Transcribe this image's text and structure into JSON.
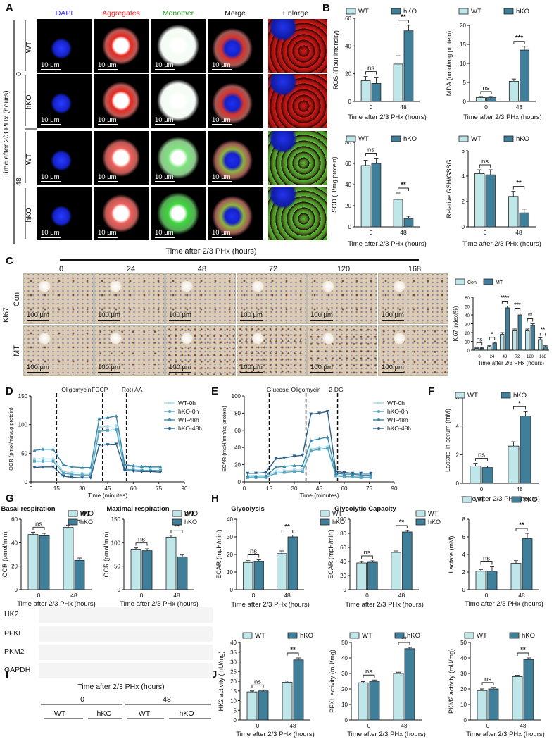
{
  "panel_letters": [
    "A",
    "B",
    "C",
    "D",
    "E",
    "F",
    "G",
    "H",
    "I",
    "J"
  ],
  "panelA": {
    "columns": [
      "DAPI",
      "Aggregates",
      "Monomer",
      "Merge",
      "Enlarge"
    ],
    "column_colors": [
      "#2a2aff",
      "#ff2020",
      "#20a020",
      "#111111",
      "#111111"
    ],
    "y_label": "Time after 2/3 PHx (hours)",
    "time_labels": [
      "0",
      "48"
    ],
    "row_labels": [
      "WT",
      "hKO",
      "WT",
      "hKO"
    ],
    "scale": "10 μm"
  },
  "panelC": {
    "times": [
      "0",
      "24",
      "48",
      "72",
      "120",
      "168"
    ],
    "row_group": "Ki67",
    "rows": [
      "Con",
      "MT"
    ],
    "scale": "100 μm"
  },
  "panelI": {
    "title": "Time after 2/3 PHx (hours)",
    "times": [
      "0",
      "48"
    ],
    "groups": [
      "WT",
      "hKO",
      "WT",
      "hKO"
    ],
    "bands": [
      "HK2",
      "PFKL",
      "PKM2",
      "GAPDH"
    ]
  },
  "colors": {
    "light": "#bfe7ea",
    "dark": "#3f7f9a",
    "line": "#222222"
  },
  "chart_data": [
    {
      "id": "B1",
      "type": "bar",
      "legend": [
        "WT",
        "hKO"
      ],
      "categories": [
        "0",
        "48"
      ],
      "ylabel": "ROS (Flour intensity)",
      "xlabel": "Time after 2/3 PHx (hours)",
      "ylim": [
        0,
        60
      ],
      "yticks": [
        0,
        20,
        40,
        60
      ],
      "series": [
        {
          "name": "WT",
          "values": [
            15,
            27
          ],
          "err": [
            3,
            6
          ]
        },
        {
          "name": "hKO",
          "values": [
            13,
            51
          ],
          "err": [
            4,
            4
          ]
        }
      ],
      "sig": [
        "ns",
        "**"
      ]
    },
    {
      "id": "B2",
      "type": "bar",
      "legend": [
        "WT",
        "hKO"
      ],
      "categories": [
        "0",
        "48"
      ],
      "ylabel": "MDA (nmol/mg protein)",
      "xlabel": "Time after 2/3 PHx (hours)",
      "ylim": [
        0,
        20
      ],
      "yticks": [
        0,
        5,
        10,
        15,
        20
      ],
      "series": [
        {
          "name": "WT",
          "values": [
            1,
            5.3
          ],
          "err": [
            0.3,
            0.6
          ]
        },
        {
          "name": "hKO",
          "values": [
            1,
            13.5
          ],
          "err": [
            0.3,
            1
          ]
        }
      ],
      "sig": [
        "ns",
        "***"
      ]
    },
    {
      "id": "B3",
      "type": "bar",
      "legend": [
        "WT",
        "hKO"
      ],
      "categories": [
        "0",
        "48"
      ],
      "ylabel": "SOD (U/mg protein)",
      "xlabel": "Time after 2/3 PHx (hours)",
      "ylim": [
        0,
        80
      ],
      "yticks": [
        0,
        20,
        40,
        60,
        80
      ],
      "series": [
        {
          "name": "WT",
          "values": [
            58,
            26
          ],
          "err": [
            5,
            6
          ]
        },
        {
          "name": "hKO",
          "values": [
            60,
            8
          ],
          "err": [
            5,
            2
          ]
        }
      ],
      "sig": [
        "ns",
        "**"
      ]
    },
    {
      "id": "B4",
      "type": "bar",
      "legend": [
        "WT",
        "hKO"
      ],
      "categories": [
        "0",
        "48"
      ],
      "ylabel": "Relative GSH/GSSG",
      "xlabel": "Time after 2/3 PHx (hours)",
      "ylim": [
        0,
        6
      ],
      "yticks": [
        0,
        2,
        4,
        6
      ],
      "series": [
        {
          "name": "WT",
          "values": [
            4.2,
            2.4
          ],
          "err": [
            0.3,
            0.4
          ]
        },
        {
          "name": "hKO",
          "values": [
            4.1,
            1.1
          ],
          "err": [
            0.4,
            0.3
          ]
        }
      ],
      "sig": [
        "ns",
        "**"
      ]
    },
    {
      "id": "C",
      "type": "bar",
      "legend": [
        "Con",
        "MT"
      ],
      "categories": [
        "0",
        "24",
        "48",
        "72",
        "120",
        "168"
      ],
      "ylabel": "Ki67 index(%)",
      "xlabel": "Time after 2/3 PHx (hours)",
      "ylim": [
        0,
        60
      ],
      "yticks": [
        0,
        10,
        20,
        30,
        40,
        50,
        60
      ],
      "series": [
        {
          "name": "Con",
          "values": [
            2,
            4,
            18,
            22,
            22,
            12
          ],
          "err": [
            1,
            1,
            2,
            2,
            2,
            2
          ]
        },
        {
          "name": "MT",
          "values": [
            2,
            8,
            48,
            40,
            28,
            4
          ],
          "err": [
            1,
            1,
            2,
            2,
            2,
            1
          ]
        }
      ],
      "sig": [
        "ns",
        "*",
        "****",
        "***",
        "**",
        "**"
      ]
    },
    {
      "id": "D",
      "type": "line",
      "ylabel": "OCR (pmol/min/ug protein)",
      "xlabel": "Time (minutes)",
      "xlim": [
        0,
        90
      ],
      "ylim": [
        0,
        150
      ],
      "xticks": [
        0,
        15,
        30,
        45,
        60,
        75,
        90
      ],
      "yticks": [
        0,
        50,
        100,
        150
      ],
      "annotations": [
        {
          "text": "Oligomycin",
          "x": 15
        },
        {
          "text": "FCCP",
          "x": 42
        },
        {
          "text": "Rot+AA",
          "x": 56
        }
      ],
      "x": [
        2,
        7,
        13,
        19,
        24,
        30,
        35,
        40,
        45,
        50,
        55,
        60,
        65,
        70,
        76
      ],
      "series": [
        {
          "name": "WT-0h",
          "values": [
            40,
            40,
            40,
            18,
            16,
            15,
            15,
            95,
            97,
            98,
            28,
            27,
            25,
            24,
            24
          ]
        },
        {
          "name": "hKO-0h",
          "values": [
            36,
            36,
            36,
            15,
            13,
            12,
            12,
            88,
            90,
            91,
            22,
            21,
            20,
            20,
            20
          ]
        },
        {
          "name": "WT-48h",
          "values": [
            55,
            57,
            57,
            30,
            26,
            25,
            25,
            110,
            112,
            115,
            30,
            28,
            27,
            26,
            26
          ]
        },
        {
          "name": "hKO-48h",
          "values": [
            25,
            26,
            26,
            10,
            8,
            7,
            7,
            64,
            65,
            66,
            20,
            19,
            18,
            18,
            17
          ]
        }
      ]
    },
    {
      "id": "F",
      "type": "line",
      "ylabel": "ECAR (mpH/min/ug protein)",
      "xlabel": "Time (minutes)",
      "xlim": [
        0,
        90
      ],
      "ylim": [
        0,
        100
      ],
      "xticks": [
        0,
        15,
        30,
        45,
        60,
        75,
        90
      ],
      "yticks": [
        0,
        20,
        40,
        60,
        80,
        100
      ],
      "annotations": [
        {
          "text": "Glucose",
          "x": 15
        },
        {
          "text": "Oligomycin",
          "x": 37
        },
        {
          "text": "2-DG",
          "x": 56
        }
      ],
      "x": [
        2,
        7,
        13,
        19,
        24,
        30,
        35,
        40,
        45,
        50,
        55,
        60,
        65,
        70,
        76
      ],
      "series": [
        {
          "name": "WT-0h",
          "values": [
            6,
            6,
            6,
            12,
            13,
            14,
            14,
            38,
            40,
            41,
            8,
            7,
            7,
            6,
            6
          ]
        },
        {
          "name": "hKO-0h",
          "values": [
            5,
            5,
            5,
            10,
            11,
            12,
            12,
            36,
            38,
            39,
            7,
            6,
            6,
            5,
            5
          ]
        },
        {
          "name": "WT-48h",
          "values": [
            7,
            7,
            7,
            17,
            18,
            19,
            19,
            48,
            50,
            52,
            10,
            9,
            9,
            8,
            8
          ]
        },
        {
          "name": "hKO-48h",
          "values": [
            10,
            10,
            11,
            27,
            28,
            30,
            31,
            79,
            80,
            82,
            12,
            11,
            10,
            10,
            10
          ]
        }
      ]
    },
    {
      "id": "H",
      "type": "bar",
      "legend": [
        "WT",
        "hKO"
      ],
      "categories": [
        "0",
        "48"
      ],
      "ylabel": "Lactate in serum (mM)",
      "xlabel": "Time after 2/3 PHx (hours)",
      "ylim": [
        0,
        6
      ],
      "yticks": [
        0,
        2,
        4,
        6
      ],
      "series": [
        {
          "name": "WT",
          "values": [
            1.2,
            2.6
          ],
          "err": [
            0.2,
            0.3
          ]
        },
        {
          "name": "hKO",
          "values": [
            1.1,
            4.7
          ],
          "err": [
            0.1,
            0.3
          ]
        }
      ],
      "sig": [
        "ns",
        "*"
      ]
    },
    {
      "id": "E1",
      "type": "bar",
      "title": "Basal respiration",
      "legend": [
        "WT",
        "hKO"
      ],
      "categories": [
        "0",
        "48"
      ],
      "ylabel": "OCR (pmol/min)",
      "xlabel": "Time after 2/3 PHx (hours)",
      "ylim": [
        0,
        60
      ],
      "yticks": [
        0,
        20,
        40,
        60
      ],
      "series": [
        {
          "name": "WT",
          "values": [
            47,
            53
          ],
          "err": [
            2,
            2
          ]
        },
        {
          "name": "hKO",
          "values": [
            46,
            25
          ],
          "err": [
            2,
            2
          ]
        }
      ],
      "sig": [
        "ns",
        "**"
      ]
    },
    {
      "id": "E2",
      "type": "bar",
      "title": "Maximal respiration",
      "legend": [
        "WT",
        "hKO"
      ],
      "categories": [
        "0",
        "48"
      ],
      "ylabel": "OCR (pmol/min)",
      "xlabel": "Time after 2/3 PHx (hours)",
      "ylim": [
        0,
        150
      ],
      "yticks": [
        0,
        50,
        100,
        150
      ],
      "series": [
        {
          "name": "WT",
          "values": [
            85,
            112
          ],
          "err": [
            4,
            4
          ]
        },
        {
          "name": "hKO",
          "values": [
            83,
            70
          ],
          "err": [
            4,
            4
          ]
        }
      ],
      "sig": [
        "ns",
        "**"
      ]
    },
    {
      "id": "G1",
      "type": "bar",
      "title": "Glycolysis",
      "legend": [
        "WT",
        "hKO"
      ],
      "categories": [
        "0",
        "48"
      ],
      "ylabel": "ECAR (mpH/min)",
      "xlabel": "Time after 2/3 PHx (hours)",
      "ylim": [
        0,
        40
      ],
      "yticks": [
        0,
        10,
        20,
        30,
        40
      ],
      "series": [
        {
          "name": "WT",
          "values": [
            15.5,
            20.5
          ],
          "err": [
            1,
            1.5
          ]
        },
        {
          "name": "hKO",
          "values": [
            16,
            30
          ],
          "err": [
            1,
            1
          ]
        }
      ],
      "sig": [
        "ns",
        "**"
      ]
    },
    {
      "id": "G2",
      "type": "bar",
      "title": "Glycolytic Capacity",
      "legend": [
        "WT",
        "hKO"
      ],
      "categories": [
        "0",
        "48"
      ],
      "ylabel": "ECAR (mpH/min)",
      "xlabel": "Time after 2/3 PHx (hours)",
      "ylim": [
        0,
        100
      ],
      "yticks": [
        0,
        20,
        40,
        60,
        80,
        100
      ],
      "series": [
        {
          "name": "WT",
          "values": [
            38,
            53
          ],
          "err": [
            2,
            2
          ]
        },
        {
          "name": "hKO",
          "values": [
            39,
            82
          ],
          "err": [
            2,
            2
          ]
        }
      ],
      "sig": [
        "ns",
        "**"
      ]
    },
    {
      "id": "G3",
      "type": "bar",
      "legend": [
        "WT",
        "hKO"
      ],
      "categories": [
        "0",
        "48"
      ],
      "ylabel": "Lactate  (mM)",
      "xlabel": "Time after 2/3 PHx (hours)",
      "ylim": [
        0,
        8
      ],
      "yticks": [
        0,
        2,
        4,
        6,
        8
      ],
      "series": [
        {
          "name": "WT",
          "values": [
            2.1,
            3
          ],
          "err": [
            0.2,
            0.3
          ]
        },
        {
          "name": "hKO",
          "values": [
            2.1,
            5.8
          ],
          "err": [
            0.5,
            0.6
          ]
        }
      ],
      "sig": [
        "ns",
        "**"
      ]
    },
    {
      "id": "J1",
      "type": "bar",
      "legend": [
        "WT",
        "hKO"
      ],
      "categories": [
        "0",
        "48"
      ],
      "ylabel": "HK2 activity (mU/mg)",
      "xlabel": "Time after 2/3 PHx (hours)",
      "ylim": [
        0,
        40
      ],
      "yticks": [
        0,
        5,
        10,
        15,
        20,
        25,
        30,
        35,
        40
      ],
      "series": [
        {
          "name": "WT",
          "values": [
            14.5,
            19.5
          ],
          "err": [
            0.5,
            0.6
          ]
        },
        {
          "name": "hKO",
          "values": [
            15,
            31
          ],
          "err": [
            0.5,
            1
          ]
        }
      ],
      "sig": [
        "ns",
        "**"
      ]
    },
    {
      "id": "J2",
      "type": "bar",
      "legend": [
        "WT",
        "hKO"
      ],
      "categories": [
        "0",
        "48"
      ],
      "ylabel": "PFKL activity (mU/mg)",
      "xlabel": "Time after 2/3 PHx (hours)",
      "ylim": [
        0,
        50
      ],
      "yticks": [
        0,
        10,
        20,
        30,
        40,
        50
      ],
      "series": [
        {
          "name": "WT",
          "values": [
            24,
            30
          ],
          "err": [
            0.8,
            0.8
          ]
        },
        {
          "name": "hKO",
          "values": [
            25,
            46
          ],
          "err": [
            0.8,
            0.8
          ]
        }
      ],
      "sig": [
        "ns",
        "**"
      ]
    },
    {
      "id": "J3",
      "type": "bar",
      "legend": [
        "WT",
        "hKO"
      ],
      "categories": [
        "0",
        "48"
      ],
      "ylabel": "PKM2 activity (mU/mg)",
      "xlabel": "Time after 2/3 PHx (hours)",
      "ylim": [
        0,
        50
      ],
      "yticks": [
        0,
        10,
        20,
        30,
        40,
        50
      ],
      "series": [
        {
          "name": "WT",
          "values": [
            19,
            28
          ],
          "err": [
            1,
            0.8
          ]
        },
        {
          "name": "hKO",
          "values": [
            20,
            39
          ],
          "err": [
            1,
            1
          ]
        }
      ],
      "sig": [
        "ns",
        "**"
      ]
    }
  ]
}
